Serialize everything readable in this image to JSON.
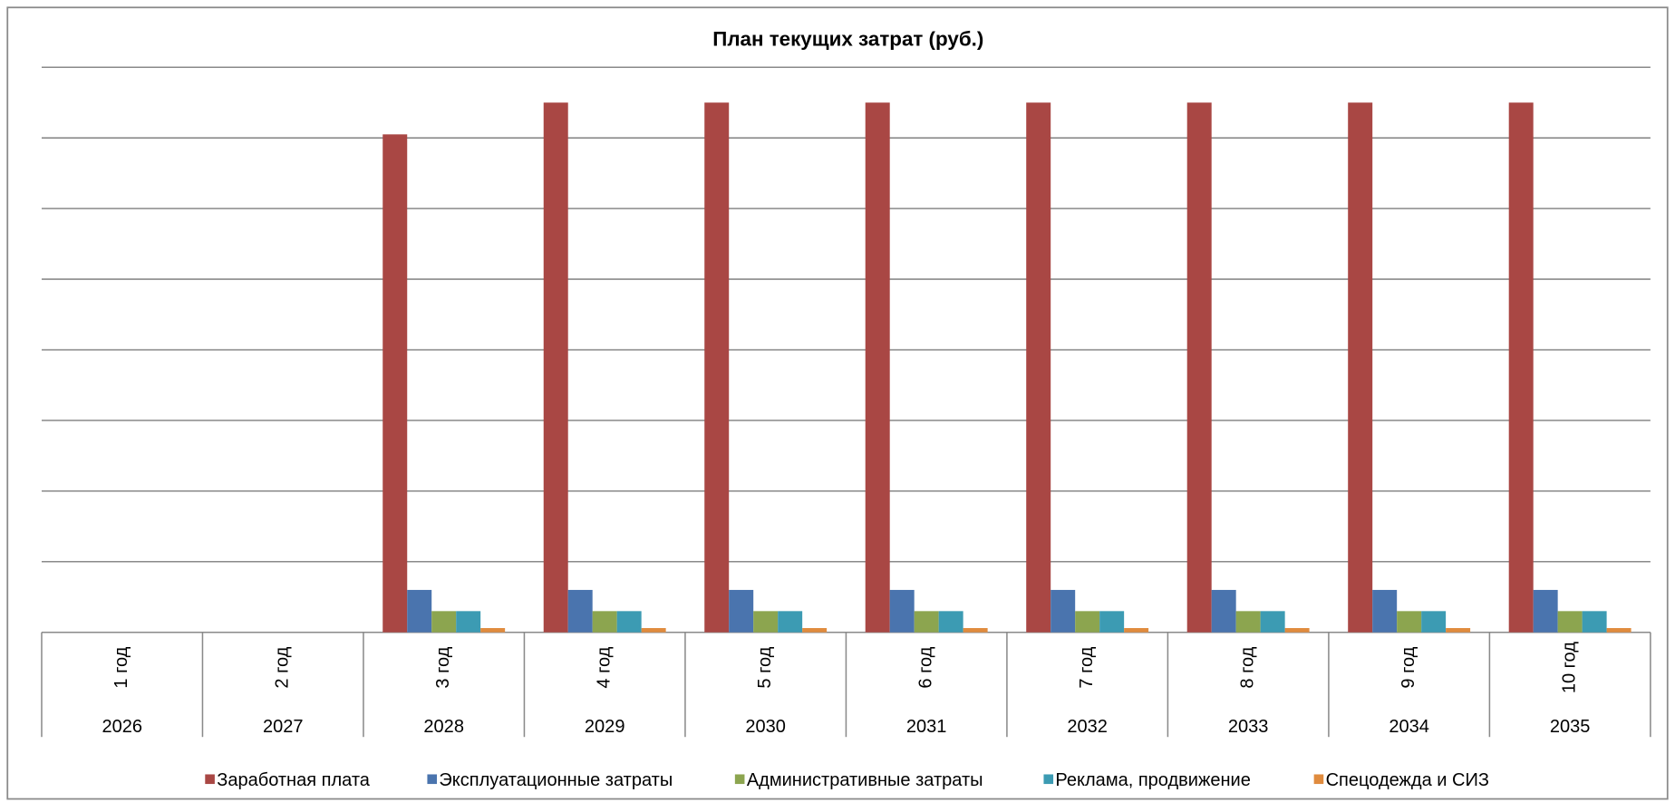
{
  "chart_data": {
    "type": "bar",
    "title": "План текущих затрат (руб.)",
    "categories": [
      "1 год",
      "2 год",
      "3 год",
      "4 год",
      "5 год",
      "6 год",
      "7 год",
      "8 год",
      "9 год",
      "10 год"
    ],
    "years": [
      "2026",
      "2027",
      "2028",
      "2029",
      "2030",
      "2031",
      "2032",
      "2033",
      "2034",
      "2035"
    ],
    "series": [
      {
        "name": "Заработная плата",
        "color": "#a94744",
        "values": [
          0,
          0,
          7.05,
          7.5,
          7.5,
          7.5,
          7.5,
          7.5,
          7.5,
          7.5
        ]
      },
      {
        "name": "Эксплуатационные затраты",
        "color": "#4a74ae",
        "values": [
          0,
          0,
          0.6,
          0.6,
          0.6,
          0.6,
          0.6,
          0.6,
          0.6,
          0.6
        ]
      },
      {
        "name": "Административные затраты",
        "color": "#8ca54f",
        "values": [
          0,
          0,
          0.3,
          0.3,
          0.3,
          0.3,
          0.3,
          0.3,
          0.3,
          0.3
        ]
      },
      {
        "name": "Реклама, продвижение",
        "color": "#3c9bb3",
        "values": [
          0,
          0,
          0.3,
          0.3,
          0.3,
          0.3,
          0.3,
          0.3,
          0.3,
          0.3
        ]
      },
      {
        "name": "Спецодежда и СИЗ",
        "color": "#e08b3e",
        "values": [
          0,
          0,
          0.06,
          0.06,
          0.06,
          0.06,
          0.06,
          0.06,
          0.06,
          0.06
        ]
      }
    ],
    "ylim": [
      0,
      8
    ],
    "yticks": [
      0,
      1,
      2,
      3,
      4,
      5,
      6,
      7,
      8
    ],
    "grid": true,
    "legend": "bottom"
  }
}
